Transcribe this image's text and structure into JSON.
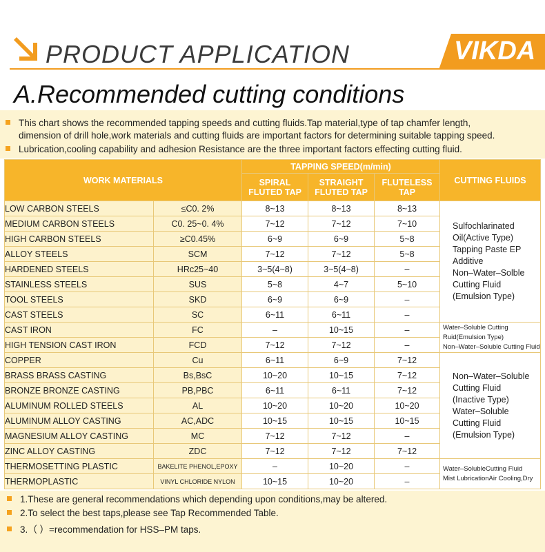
{
  "header": {
    "title": "PRODUCT APPLICATION",
    "brand": "VIKDA"
  },
  "section_title": "A.Recommended cutting conditions",
  "intro": [
    "This chart shows the recommended tapping speeds and cutting fluids.Tap material,type of tap chamfer length,",
    "dimension of drill hole,work materials and cutting fluids are important factors for determining suitable tapping speed.",
    "Lubrication,cooling capability and adhesion Resistance are the three important factors effecting cutting fluid."
  ],
  "table": {
    "headers": {
      "work_materials": "WORK MATERIALS",
      "tapping_speed": "TAPPING SPEED(m/min)",
      "spiral": "SPIRAL FLUTED TAP",
      "straight": "STRAIGHT FLUTED TAP",
      "fluteless": "FLUTELESS TAP",
      "fluids": "CUTTING FLUIDS"
    },
    "rows": [
      {
        "material": "LOW CARBON STEELS",
        "spec": "≤C0. 2%",
        "spiral": "8~13",
        "straight": "8~13",
        "fluteless": "8~13"
      },
      {
        "material": "MEDIUM CARBON STEELS",
        "spec": "C0. 25~0. 4%",
        "spiral": "7~12",
        "straight": "7~12",
        "fluteless": "7~10"
      },
      {
        "material": "HIGH CARBON STEELS",
        "spec": "≥C0.45%",
        "spiral": "6~9",
        "straight": "6~9",
        "fluteless": "5~8"
      },
      {
        "material": "ALLOY STEELS",
        "spec": "SCM",
        "spiral": "7~12",
        "straight": "7~12",
        "fluteless": "5~8"
      },
      {
        "material": "HARDENED STEELS",
        "spec": "HRc25~40",
        "spiral": "3~5(4~8)",
        "straight": "3~5(4~8)",
        "fluteless": "–"
      },
      {
        "material": "STAINLESS STEELS",
        "spec": "SUS",
        "spiral": "5~8",
        "straight": "4~7",
        "fluteless": "5~10"
      },
      {
        "material": "TOOL STEELS",
        "spec": "SKD",
        "spiral": "6~9",
        "straight": "6~9",
        "fluteless": "–"
      },
      {
        "material": "CAST STEELS",
        "spec": "SC",
        "spiral": "6~11",
        "straight": "6~11",
        "fluteless": "–"
      },
      {
        "material": "CAST IRON",
        "spec": "FC",
        "spiral": "–",
        "straight": "10~15",
        "fluteless": "–"
      },
      {
        "material": "HIGH TENSION CAST IRON",
        "spec": "FCD",
        "spiral": "7~12",
        "straight": "7~12",
        "fluteless": "–"
      },
      {
        "material": "COPPER",
        "spec": "Cu",
        "spiral": "6~11",
        "straight": "6~9",
        "fluteless": "7~12"
      },
      {
        "material": "BRASS BRASS CASTING",
        "spec": "Bs,BsC",
        "spiral": "10~20",
        "straight": "10~15",
        "fluteless": "7~12"
      },
      {
        "material": "BRONZE BRONZE CASTING",
        "spec": "PB,PBC",
        "spiral": "6~11",
        "straight": "6~11",
        "fluteless": "7~12"
      },
      {
        "material": "ALUMINUM ROLLED STEELS",
        "spec": "AL",
        "spiral": "10~20",
        "straight": "10~20",
        "fluteless": "10~20"
      },
      {
        "material": "ALUMINUM ALLOY CASTING",
        "spec": "AC,ADC",
        "spiral": "10~15",
        "straight": "10~15",
        "fluteless": "10~15"
      },
      {
        "material": "MAGNESIUM ALLOY CASTING",
        "spec": "MC",
        "spiral": "7~12",
        "straight": "7~12",
        "fluteless": "–"
      },
      {
        "material": "ZINC ALLOY CASTING",
        "spec": "ZDC",
        "spiral": "7~12",
        "straight": "7~12",
        "fluteless": "7~12"
      },
      {
        "material": "THERMOSETTING PLASTIC",
        "spec": "BAKELITE PHENOL,EPOXY",
        "spiral": "–",
        "straight": "10~20",
        "fluteless": "–"
      },
      {
        "material": "THERMOPLASTIC",
        "spec": "VINYL CHLORIDE NYLON",
        "spiral": "10~15",
        "straight": "10~20",
        "fluteless": "–"
      }
    ],
    "fluids": [
      [
        "Sulfochlarinated",
        "Oil(Active Type)",
        "Tapping Paste EP",
        "Additive",
        "Non–Water–Solble",
        "Cutting Fluid",
        "(Emulsion Type)"
      ],
      [
        "Water–Soluble Cutting",
        "Ruid(Emulsion Type)",
        "Non–Water–Soluble Cutting Fluid"
      ],
      [
        "Non–Water–Soluble",
        "Cutting Fluid",
        "(Inactive Type)",
        "Water–Soluble",
        "Cutting Fluid",
        "(Emulsion Type)"
      ],
      [
        "Water–SolubleCutting Fluid",
        "Mist LubricationAir Cooling,Dry"
      ]
    ]
  },
  "notes": [
    "1.These are general recommendations which depending upon conditions,may be altered.",
    "2.To select the best taps,please see Tap Recommended Table.",
    "3.（ ）=recommendation for HSS–PM taps."
  ],
  "colors": {
    "accent": "#f29c1f",
    "header_fill": "#f7b52a",
    "pale": "#fdf2cc"
  }
}
